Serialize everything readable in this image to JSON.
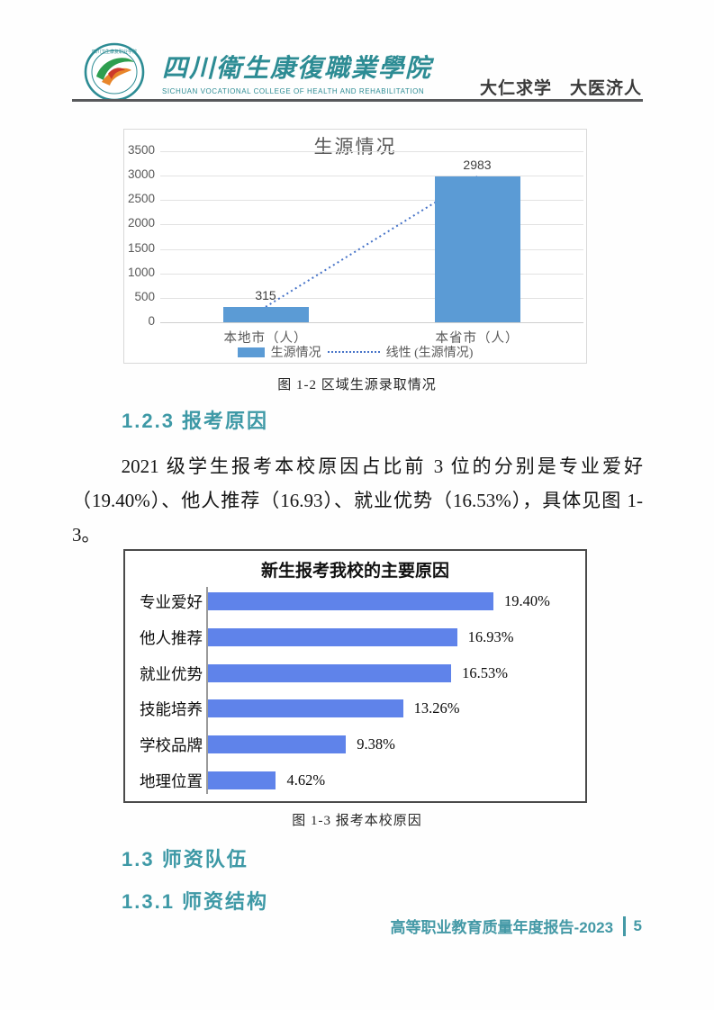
{
  "header": {
    "college_name_zh": "四川衛生康復職業學院",
    "college_name_en": "SICHUAN VOCATIONAL COLLEGE OF HEALTH AND REHABILITATION",
    "motto": "大仁求学　大医济人",
    "logo_icon": "college-emblem",
    "brand_color": "#2D8C94"
  },
  "sections": {
    "h123": "1.2.3 报考原因",
    "h13": "1.3 师资队伍",
    "h131": "1.3.1 师资结构",
    "heading_color": "#3E99A6"
  },
  "paragraph": "2021 级学生报考本校原因占比前 3 位的分别是专业爱好（19.40%）、他人推荐（16.93）、就业优势（16.53%），具体见图 1-3。",
  "figures": {
    "fig1_caption": "图 1-2 区域生源录取情况",
    "fig2_caption": "图 1-3 报考本校原因"
  },
  "footer": {
    "report_title": "高等职业教育质量年度报告-2023",
    "page_number": "5"
  },
  "chart_data": [
    {
      "type": "bar",
      "title": "生源情况",
      "categories": [
        "本地市（人）",
        "本省市（人）"
      ],
      "values": [
        315,
        2983
      ],
      "data_labels": [
        "315",
        "2983"
      ],
      "ylim": [
        0,
        3500
      ],
      "yticks": [
        0,
        500,
        1000,
        1500,
        2000,
        2500,
        3000,
        3500
      ],
      "grid": true,
      "bar_color": "#5B9BD5",
      "trendline": {
        "type": "linear",
        "style": "dotted",
        "color": "#4673C8"
      },
      "legend": [
        "生源情况",
        "线性 (生源情况)"
      ],
      "legend_position": "bottom"
    },
    {
      "type": "bar",
      "orientation": "horizontal",
      "title": "新生报考我校的主要原因",
      "categories": [
        "专业爱好",
        "他人推荐",
        "就业优势",
        "技能培养",
        "学校品牌",
        "地理位置"
      ],
      "values": [
        19.4,
        16.93,
        16.53,
        13.26,
        9.38,
        4.62
      ],
      "data_labels": [
        "19.40%",
        "16.93%",
        "16.53%",
        "13.26%",
        "9.38%",
        "4.62%"
      ],
      "xlim": [
        0,
        20
      ],
      "grid": false,
      "bar_color": "#5F83EA",
      "legend_position": "none"
    }
  ]
}
